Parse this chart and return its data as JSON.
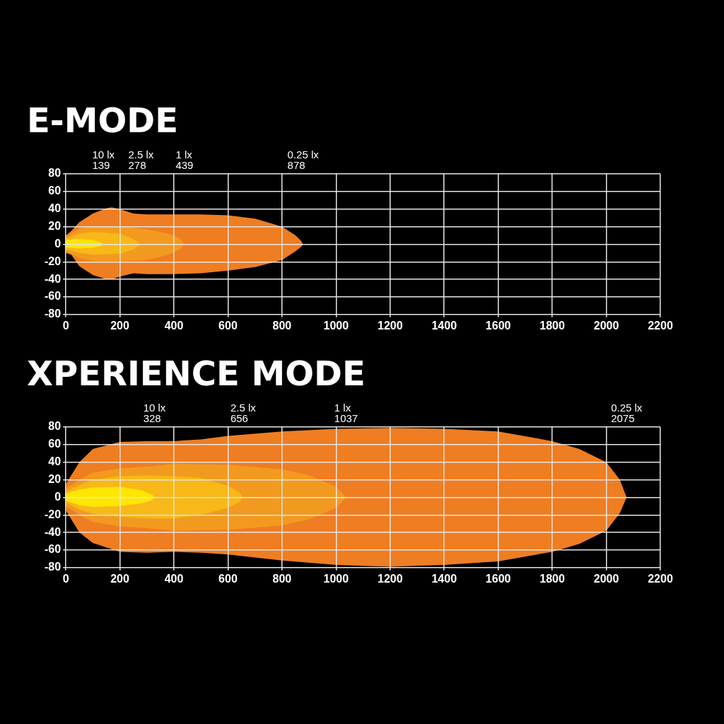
{
  "chart_data": [
    {
      "type": "area",
      "title": "E-MODE",
      "xlim": [
        0,
        2200
      ],
      "ylim": [
        -80,
        80
      ],
      "xticks": [
        0,
        200,
        400,
        600,
        800,
        1000,
        1200,
        1400,
        1600,
        1800,
        2000,
        2200
      ],
      "yticks": [
        -80,
        -60,
        -40,
        -20,
        0,
        20,
        40,
        60,
        80
      ],
      "grid": true,
      "annotations": [
        "10 lx\n139",
        "2.5 lx\n278",
        "1 lx\n439",
        "0.25 lx\n878"
      ],
      "series": [
        {
          "color": "#ef7d22",
          "x": [
            0,
            20,
            50,
            100,
            150,
            170,
            200,
            250,
            300,
            400,
            500,
            600,
            700,
            800,
            850,
            870,
            878
          ],
          "values": [
            10,
            15,
            25,
            35,
            41,
            42,
            40,
            35,
            34,
            34,
            34,
            33,
            29,
            20,
            10,
            4,
            0
          ]
        },
        {
          "color": "#ef7d22",
          "x": [
            0,
            20,
            50,
            100,
            150,
            170,
            200,
            250,
            300,
            400,
            500,
            600,
            700,
            800,
            850,
            870,
            878
          ],
          "values": [
            -10,
            -12,
            -25,
            -35,
            -40,
            -40,
            -37,
            -33,
            -34,
            -34,
            -33,
            -30,
            -26,
            -18,
            -8,
            -3,
            0
          ]
        },
        {
          "color": "#f29a20",
          "x": [
            0,
            50,
            100,
            200,
            300,
            380,
            420,
            439
          ],
          "values": [
            8,
            18,
            20,
            20,
            17,
            12,
            7,
            0
          ]
        },
        {
          "color": "#f29a20",
          "x": [
            0,
            50,
            100,
            200,
            300,
            380,
            420,
            439
          ],
          "values": [
            -8,
            -16,
            -19,
            -19,
            -18,
            -12,
            -6,
            0
          ]
        },
        {
          "color": "#f8b818",
          "x": [
            0,
            50,
            100,
            200,
            250,
            278
          ],
          "values": [
            6,
            12,
            14,
            12,
            6,
            0
          ]
        },
        {
          "color": "#f8b818",
          "x": [
            0,
            50,
            100,
            200,
            250,
            278
          ],
          "values": [
            -6,
            -10,
            -12,
            -11,
            -6,
            0
          ]
        },
        {
          "color": "#ffe600",
          "x": [
            0,
            50,
            100,
            130,
            139
          ],
          "values": [
            5,
            6,
            5,
            2,
            0
          ]
        },
        {
          "color": "#ffe600",
          "x": [
            0,
            50,
            100,
            130,
            139
          ],
          "values": [
            -4,
            -5,
            -4,
            -2,
            0
          ]
        }
      ]
    },
    {
      "type": "area",
      "title": "XPERIENCE MODE",
      "xlim": [
        0,
        2200
      ],
      "ylim": [
        -80,
        80
      ],
      "xticks": [
        0,
        200,
        400,
        600,
        800,
        1000,
        1200,
        1400,
        1600,
        1800,
        2000,
        2200
      ],
      "yticks": [
        -80,
        -60,
        -40,
        -20,
        0,
        20,
        40,
        60,
        80
      ],
      "grid": true,
      "annotations": [
        "10 lx\n328",
        "2.5 lx\n656",
        "1 lx\n1037",
        "0.25 lx\n2075"
      ],
      "series": [
        {
          "color": "#ef7d22",
          "x": [
            0,
            20,
            50,
            100,
            200,
            300,
            400,
            500,
            600,
            800,
            1000,
            1200,
            1400,
            1600,
            1800,
            1900,
            2000,
            2050,
            2075
          ],
          "values": [
            15,
            25,
            40,
            55,
            63,
            64,
            64,
            66,
            70,
            75,
            78,
            79,
            78,
            75,
            64,
            55,
            40,
            20,
            0
          ]
        },
        {
          "color": "#ef7d22",
          "x": [
            0,
            20,
            50,
            100,
            200,
            300,
            400,
            500,
            600,
            800,
            1000,
            1200,
            1400,
            1600,
            1800,
            1900,
            2000,
            2050,
            2075
          ],
          "values": [
            -15,
            -25,
            -40,
            -52,
            -62,
            -63,
            -62,
            -63,
            -65,
            -72,
            -77,
            -79,
            -77,
            -73,
            -62,
            -53,
            -38,
            -18,
            0
          ]
        },
        {
          "color": "#f29a20",
          "x": [
            0,
            50,
            100,
            200,
            300,
            400,
            600,
            800,
            900,
            1000,
            1037
          ],
          "values": [
            10,
            20,
            28,
            33,
            35,
            38,
            37,
            32,
            25,
            12,
            0
          ]
        },
        {
          "color": "#f29a20",
          "x": [
            0,
            50,
            100,
            200,
            300,
            400,
            600,
            800,
            900,
            1000,
            1037
          ],
          "values": [
            -10,
            -20,
            -28,
            -33,
            -35,
            -38,
            -37,
            -32,
            -25,
            -12,
            0
          ]
        },
        {
          "color": "#f8b818",
          "x": [
            0,
            50,
            100,
            200,
            300,
            400,
            500,
            600,
            640,
            656
          ],
          "values": [
            6,
            14,
            20,
            24,
            25,
            24,
            22,
            13,
            6,
            0
          ]
        },
        {
          "color": "#f8b818",
          "x": [
            0,
            50,
            100,
            200,
            300,
            400,
            500,
            600,
            640,
            656
          ],
          "values": [
            -6,
            -14,
            -19,
            -22,
            -24,
            -24,
            -20,
            -12,
            -6,
            0
          ]
        },
        {
          "color": "#ffe600",
          "x": [
            0,
            50,
            100,
            200,
            280,
            320,
            328
          ],
          "values": [
            4,
            9,
            11,
            12,
            8,
            3,
            0
          ]
        },
        {
          "color": "#ffe600",
          "x": [
            0,
            50,
            100,
            200,
            280,
            320,
            328
          ],
          "values": [
            -4,
            -9,
            -11,
            -10,
            -7,
            -3,
            0
          ]
        }
      ]
    }
  ]
}
